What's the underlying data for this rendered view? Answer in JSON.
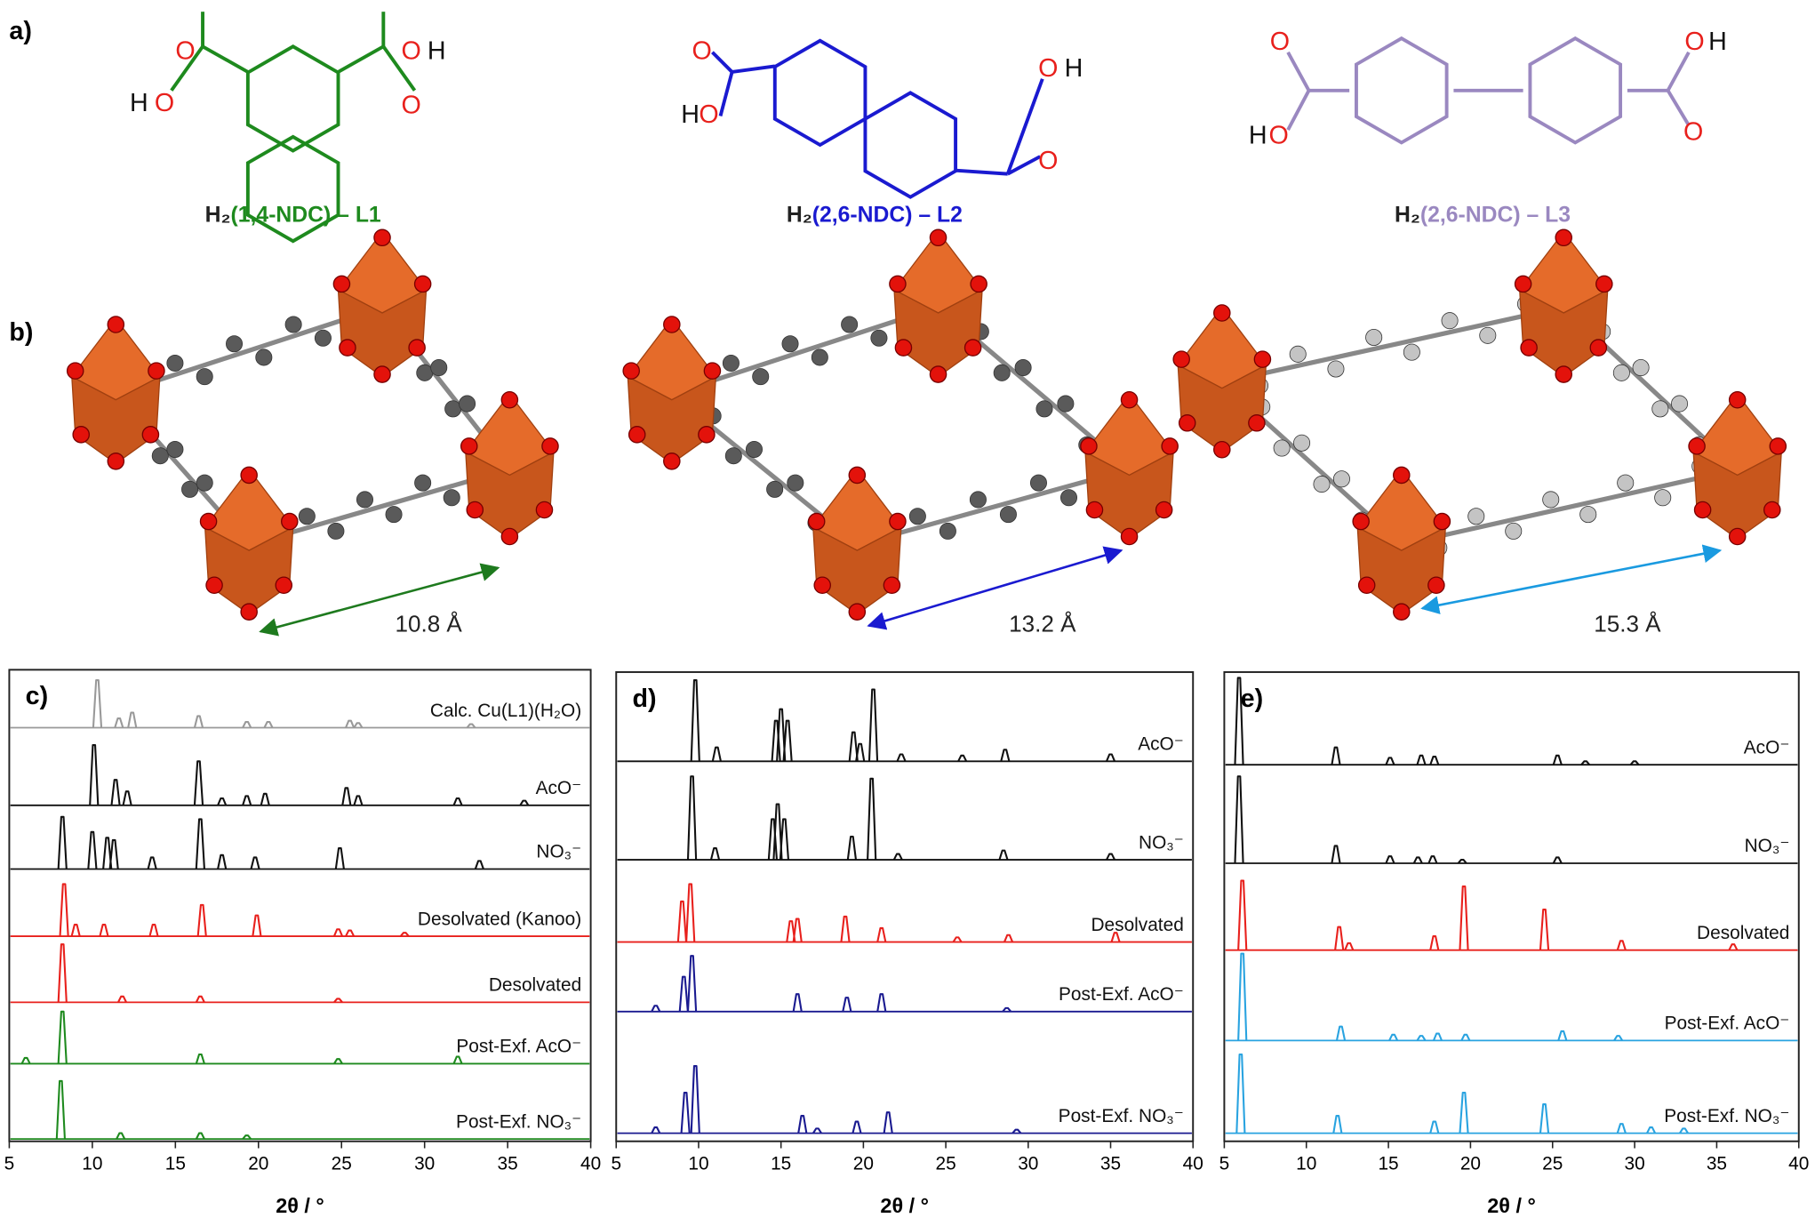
{
  "panel_labels": [
    "a)",
    "b)"
  ],
  "molecules": [
    {
      "formula": "H₂",
      "name": "(1,4-NDC) – L1",
      "color": "#1e8a1e",
      "atoms": [
        "O",
        "O",
        "H",
        "H",
        "O",
        "O"
      ]
    },
    {
      "formula": "H₂",
      "name": "(2,6-NDC) – L2",
      "color": "#1a1ad0",
      "atoms": [
        "O",
        "H",
        "O",
        "O",
        "H",
        "O"
      ]
    },
    {
      "formula": "H₂",
      "name": "(2,6-NDC) – L3",
      "color": "#9a88c0",
      "atoms": [
        "O",
        "H",
        "O",
        "O",
        "H",
        "O"
      ]
    }
  ],
  "structures": [
    {
      "distance": "10.8 Å",
      "color": "#1e7a1e"
    },
    {
      "distance": "13.2 Å",
      "color": "#1a1ad0"
    },
    {
      "distance": "15.3 Å",
      "color": "#1a9ae0"
    }
  ],
  "chart_data": [
    {
      "type": "line",
      "panel": "c)",
      "xlabel": "2θ / °",
      "xlim": [
        5,
        40
      ],
      "xticks": [
        5,
        10,
        15,
        20,
        25,
        30,
        35,
        40
      ],
      "series": [
        {
          "name": "Calc. Cu(L1)(H₂O)",
          "color": "#999999",
          "x": [
            10.3,
            11.6,
            12.4,
            16.4,
            19.3,
            20.6,
            25.5,
            26,
            32.8
          ],
          "values": [
            41,
            8,
            13,
            10,
            5,
            5,
            6,
            4,
            3
          ]
        },
        {
          "name": "AcO⁻",
          "color": "#111111",
          "x": [
            10.1,
            11.4,
            12.1,
            16.4,
            17.8,
            19.3,
            20.4,
            25.3,
            26,
            32,
            36
          ],
          "values": [
            52,
            22,
            12,
            38,
            6,
            8,
            10,
            15,
            8,
            6,
            4
          ]
        },
        {
          "name": "NO₃⁻",
          "color": "#111111",
          "x": [
            8.2,
            10,
            10.9,
            11.3,
            13.6,
            16.5,
            17.8,
            19.8,
            24.9,
            33.3
          ],
          "values": [
            45,
            32,
            27,
            25,
            10,
            43,
            12,
            10,
            18,
            7
          ]
        },
        {
          "name": "Desolvated (Kanoo)",
          "color": "#e8201c",
          "x": [
            8.3,
            9,
            10.7,
            13.7,
            16.6,
            19.9,
            24.8,
            25.5,
            28.8
          ],
          "values": [
            45,
            10,
            10,
            10,
            27,
            18,
            6,
            5,
            3
          ]
        },
        {
          "name": "Desolvated",
          "color": "#e8201c",
          "x": [
            8.2,
            11.8,
            16.5,
            24.8
          ],
          "values": [
            50,
            5,
            5,
            3
          ]
        },
        {
          "name": "Post-Exf. AcO⁻",
          "color": "#1e8a1e",
          "x": [
            6,
            8.2,
            16.5,
            24.8,
            32
          ],
          "values": [
            5,
            45,
            8,
            4,
            6
          ]
        },
        {
          "name": "Post-Exf. NO₃⁻",
          "color": "#1e8a1e",
          "x": [
            8.1,
            11.7,
            16.5,
            19.3
          ],
          "values": [
            50,
            5,
            5,
            3
          ]
        }
      ]
    },
    {
      "type": "line",
      "panel": "d)",
      "xlabel": "2θ / °",
      "xlim": [
        5,
        40
      ],
      "xticks": [
        5,
        10,
        15,
        20,
        25,
        30,
        35,
        40
      ],
      "series": [
        {
          "name": "AcO⁻",
          "color": "#111111",
          "x": [
            9.8,
            11.1,
            14.7,
            15,
            15.4,
            19.4,
            19.8,
            20.6,
            22.3,
            26,
            28.6,
            35
          ],
          "values": [
            70,
            12,
            35,
            45,
            35,
            25,
            15,
            62,
            6,
            5,
            10,
            6
          ]
        },
        {
          "name": "NO₃⁻",
          "color": "#111111",
          "x": [
            9.6,
            11,
            14.5,
            14.8,
            15.2,
            19.3,
            20.5,
            22.1,
            28.5,
            35
          ],
          "values": [
            72,
            10,
            35,
            48,
            35,
            20,
            70,
            5,
            8,
            5
          ]
        },
        {
          "name": "Desolvated",
          "color": "#e8201c",
          "x": [
            9,
            9.5,
            15.6,
            16,
            18.9,
            21.1,
            25.7,
            28.8,
            35.3
          ],
          "values": [
            35,
            50,
            18,
            20,
            22,
            12,
            4,
            6,
            8
          ]
        },
        {
          "name": "Post-Exf. AcO⁻",
          "color": "#1a1a90",
          "x": [
            7.4,
            9.1,
            9.6,
            16,
            19,
            21.1,
            28.7
          ],
          "values": [
            5,
            30,
            48,
            15,
            12,
            15,
            3
          ]
        },
        {
          "name": "Post-Exf. NO₃⁻",
          "color": "#1a1a90",
          "x": [
            7.4,
            9.2,
            9.8,
            16.3,
            17.2,
            19.6,
            21.5,
            29.3
          ],
          "values": [
            5,
            35,
            58,
            15,
            4,
            10,
            18,
            3
          ]
        }
      ]
    },
    {
      "type": "line",
      "panel": "e)",
      "xlabel": "2θ / °",
      "xlim": [
        5,
        40
      ],
      "xticks": [
        5,
        10,
        15,
        20,
        25,
        30,
        35,
        40
      ],
      "series": [
        {
          "name": "AcO⁻",
          "color": "#111111",
          "x": [
            5.9,
            11.8,
            15.1,
            17,
            17.8,
            25.3,
            27,
            30
          ],
          "values": [
            75,
            15,
            6,
            8,
            7,
            8,
            3,
            3
          ]
        },
        {
          "name": "NO₃⁻",
          "color": "#111111",
          "x": [
            5.9,
            11.8,
            15.1,
            16.8,
            17.7,
            19.5,
            25.3
          ],
          "values": [
            75,
            15,
            6,
            5,
            6,
            3,
            5
          ]
        },
        {
          "name": "Desolvated",
          "color": "#e8201c",
          "x": [
            6.1,
            12,
            12.6,
            17.8,
            19.6,
            24.5,
            29.2,
            36
          ],
          "values": [
            60,
            20,
            6,
            12,
            55,
            35,
            8,
            5
          ]
        },
        {
          "name": "Post-Exf. AcO⁻",
          "color": "#29a3e0",
          "x": [
            6.1,
            12.1,
            15.3,
            17,
            18,
            19.7,
            25.6,
            29
          ],
          "values": [
            75,
            12,
            5,
            4,
            6,
            5,
            8,
            4
          ]
        },
        {
          "name": "Post-Exf. NO₃⁻",
          "color": "#29a3e0",
          "x": [
            6,
            11.9,
            17.8,
            19.6,
            24.5,
            29.2,
            31,
            33
          ],
          "values": [
            68,
            15,
            10,
            35,
            25,
            8,
            5,
            4
          ]
        }
      ]
    }
  ]
}
